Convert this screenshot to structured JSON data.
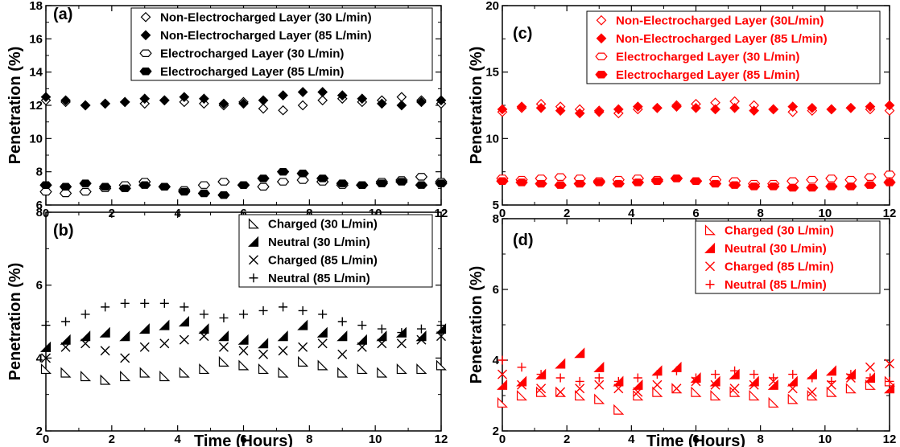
{
  "chart_data": [
    {
      "panel": "(a)",
      "type": "scatter",
      "xlabel": "",
      "ylabel": "Penetration (%)",
      "xlim": [
        0,
        12
      ],
      "ylim": [
        6,
        18
      ],
      "yticks": [
        6,
        8,
        10,
        12,
        14,
        16,
        18
      ],
      "xticks": [
        0,
        2,
        4,
        6,
        8,
        10,
        12
      ],
      "legend_position": "top-right",
      "color": "#000000",
      "series": [
        {
          "name": "Non-Electrocharged Layer (30 L/min)",
          "marker": "diamond-open",
          "x": [
            0,
            0.6,
            1.2,
            1.8,
            2.4,
            3.0,
            3.6,
            4.2,
            4.8,
            5.4,
            6.0,
            6.6,
            7.2,
            7.8,
            8.4,
            9.0,
            9.6,
            10.2,
            10.8,
            11.4,
            12.0
          ],
          "y": [
            12.3,
            12.2,
            12.0,
            12.1,
            12.2,
            12.1,
            12.3,
            12.2,
            12.1,
            12.0,
            12.2,
            11.8,
            11.7,
            12.0,
            12.3,
            12.4,
            12.2,
            12.3,
            12.5,
            12.3,
            12.1
          ]
        },
        {
          "name": "Non-Electrocharged Layer (85 L/min)",
          "marker": "diamond-filled",
          "x": [
            0,
            0.6,
            1.2,
            1.8,
            2.4,
            3.0,
            3.6,
            4.2,
            4.8,
            5.4,
            6.0,
            6.6,
            7.2,
            7.8,
            8.4,
            9.0,
            9.6,
            10.2,
            10.8,
            11.4,
            12.0
          ],
          "y": [
            12.5,
            12.3,
            12.0,
            12.1,
            12.2,
            12.4,
            12.3,
            12.5,
            12.4,
            12.1,
            12.1,
            12.3,
            12.6,
            12.8,
            12.8,
            12.6,
            12.4,
            12.1,
            12.0,
            12.2,
            12.3
          ]
        },
        {
          "name": "Electrocharged Layer (30 L/min)",
          "marker": "hexagon-open",
          "x": [
            0,
            0.6,
            1.2,
            1.8,
            2.4,
            3.0,
            3.6,
            4.2,
            4.8,
            5.4,
            6.0,
            6.6,
            7.2,
            7.8,
            8.4,
            9.0,
            9.6,
            10.2,
            10.8,
            11.4,
            12.0
          ],
          "y": [
            6.8,
            6.7,
            6.8,
            7.0,
            7.2,
            7.4,
            7.1,
            6.9,
            7.2,
            7.4,
            7.2,
            7.1,
            7.4,
            7.5,
            7.4,
            7.2,
            7.2,
            7.4,
            7.5,
            7.7,
            7.4
          ]
        },
        {
          "name": "Electrocharged Layer (85 L/min)",
          "marker": "hexagon-filled",
          "x": [
            0,
            0.6,
            1.2,
            1.8,
            2.4,
            3.0,
            3.6,
            4.2,
            4.8,
            5.4,
            6.0,
            6.6,
            7.2,
            7.8,
            8.4,
            9.0,
            9.6,
            10.2,
            10.8,
            11.4,
            12.0
          ],
          "y": [
            7.2,
            7.1,
            7.3,
            7.1,
            7.0,
            7.2,
            7.1,
            6.8,
            6.7,
            6.6,
            7.2,
            7.6,
            8.0,
            7.9,
            7.6,
            7.3,
            7.2,
            7.3,
            7.4,
            7.2,
            7.3
          ]
        }
      ]
    },
    {
      "panel": "(b)",
      "type": "scatter",
      "xlabel": "Time (Hours)",
      "ylabel": "Penetration (%)",
      "xlim": [
        0,
        12
      ],
      "ylim": [
        2,
        8
      ],
      "yticks": [
        2,
        4,
        6,
        8
      ],
      "xticks": [
        0,
        2,
        4,
        6,
        8,
        10,
        12
      ],
      "legend_position": "top-right",
      "color": "#000000",
      "series": [
        {
          "name": "Charged (30 L/min)",
          "marker": "triangle-open",
          "x": [
            0,
            0.6,
            1.2,
            1.8,
            2.4,
            3.0,
            3.6,
            4.2,
            4.8,
            5.4,
            6.0,
            6.6,
            7.2,
            7.8,
            8.4,
            9.0,
            9.6,
            10.2,
            10.8,
            11.4,
            12.0
          ],
          "y": [
            3.7,
            3.6,
            3.5,
            3.4,
            3.5,
            3.6,
            3.5,
            3.6,
            3.7,
            3.9,
            3.8,
            3.7,
            3.6,
            3.9,
            3.8,
            3.6,
            3.7,
            3.6,
            3.7,
            3.7,
            3.8
          ]
        },
        {
          "name": "Neutral (30 L/min)",
          "marker": "triangle-filled",
          "x": [
            0,
            0.6,
            1.2,
            1.8,
            2.4,
            3.0,
            3.6,
            4.2,
            4.8,
            5.4,
            6.0,
            6.6,
            7.2,
            7.8,
            8.4,
            9.0,
            9.6,
            10.2,
            10.8,
            11.4,
            12.0
          ],
          "y": [
            4.3,
            4.5,
            4.6,
            4.7,
            4.6,
            4.8,
            4.9,
            5.0,
            4.8,
            4.6,
            4.5,
            4.4,
            4.6,
            4.9,
            4.7,
            4.6,
            4.5,
            4.6,
            4.7,
            4.6,
            4.8
          ]
        },
        {
          "name": "Charged (85 L/min)",
          "marker": "x",
          "x": [
            0,
            0.6,
            1.2,
            1.8,
            2.4,
            3.0,
            3.6,
            4.2,
            4.8,
            5.4,
            6.0,
            6.6,
            7.2,
            7.8,
            8.4,
            9.0,
            9.6,
            10.2,
            10.8,
            11.4,
            12.0
          ],
          "y": [
            4.0,
            4.3,
            4.4,
            4.2,
            4.0,
            4.3,
            4.4,
            4.5,
            4.6,
            4.3,
            4.2,
            4.1,
            4.2,
            4.3,
            4.4,
            4.1,
            4.3,
            4.4,
            4.4,
            4.5,
            4.6
          ]
        },
        {
          "name": "Neutral (85 L/min)",
          "marker": "plus",
          "x": [
            0,
            0.6,
            1.2,
            1.8,
            2.4,
            3.0,
            3.6,
            4.2,
            4.8,
            5.4,
            6.0,
            6.6,
            7.2,
            7.8,
            8.4,
            9.0,
            9.6,
            10.2,
            10.8,
            11.4,
            12.0
          ],
          "y": [
            4.9,
            5.0,
            5.2,
            5.4,
            5.5,
            5.5,
            5.5,
            5.4,
            5.2,
            5.1,
            5.2,
            5.3,
            5.4,
            5.3,
            5.2,
            5.0,
            4.9,
            4.8,
            4.7,
            4.8,
            4.9
          ]
        }
      ]
    },
    {
      "panel": "(c)",
      "type": "scatter",
      "xlabel": "",
      "ylabel": "Penetration (%)",
      "xlim": [
        0,
        12
      ],
      "ylim": [
        5,
        20
      ],
      "yticks": [
        5,
        10,
        15,
        20
      ],
      "xticks": [
        0,
        2,
        4,
        6,
        8,
        10,
        12
      ],
      "legend_position": "top-right",
      "color": "#ff0000",
      "series": [
        {
          "name": "Non-Electrocharged Layer (30L/min)",
          "marker": "diamond-open",
          "x": [
            0,
            0.6,
            1.2,
            1.8,
            2.4,
            3.0,
            3.6,
            4.2,
            4.8,
            5.4,
            6.0,
            6.6,
            7.2,
            7.8,
            8.4,
            9.0,
            9.6,
            10.2,
            10.8,
            11.4,
            12.0
          ],
          "y": [
            12.0,
            12.3,
            12.6,
            12.4,
            12.2,
            12.1,
            11.9,
            12.2,
            12.3,
            12.5,
            12.6,
            12.7,
            12.8,
            12.5,
            12.2,
            12.0,
            12.1,
            12.2,
            12.3,
            12.2,
            12.1
          ]
        },
        {
          "name": "Non-Electrocharged Layer (85 L/min)",
          "marker": "diamond-filled",
          "x": [
            0,
            0.6,
            1.2,
            1.8,
            2.4,
            3.0,
            3.6,
            4.2,
            4.8,
            5.4,
            6.0,
            6.6,
            7.2,
            7.8,
            8.4,
            9.0,
            9.6,
            10.2,
            10.8,
            11.4,
            12.0
          ],
          "y": [
            12.2,
            12.4,
            12.3,
            12.1,
            11.9,
            12.0,
            12.2,
            12.4,
            12.3,
            12.4,
            12.3,
            12.2,
            12.3,
            12.1,
            12.2,
            12.4,
            12.3,
            12.2,
            12.3,
            12.4,
            12.5
          ]
        },
        {
          "name": "Electrocharged Layer (30 L/min)",
          "marker": "hexagon-open",
          "x": [
            0,
            0.6,
            1.2,
            1.8,
            2.4,
            3.0,
            3.6,
            4.2,
            4.8,
            5.4,
            6.0,
            6.6,
            7.2,
            7.8,
            8.4,
            9.0,
            9.6,
            10.2,
            10.8,
            11.4,
            12.0
          ],
          "y": [
            7.0,
            6.9,
            7.0,
            7.1,
            7.0,
            6.8,
            6.9,
            7.0,
            6.9,
            7.0,
            6.8,
            6.9,
            6.8,
            6.6,
            6.6,
            6.8,
            6.9,
            7.0,
            6.9,
            7.1,
            7.3
          ]
        },
        {
          "name": "Electrocharged Layer (85 L/min)",
          "marker": "hexagon-filled",
          "x": [
            0,
            0.6,
            1.2,
            1.8,
            2.4,
            3.0,
            3.6,
            4.2,
            4.8,
            5.4,
            6.0,
            6.6,
            7.2,
            7.8,
            8.4,
            9.0,
            9.6,
            10.2,
            10.8,
            11.4,
            12.0
          ],
          "y": [
            6.8,
            6.7,
            6.6,
            6.5,
            6.6,
            6.7,
            6.6,
            6.7,
            6.8,
            7.0,
            6.8,
            6.6,
            6.5,
            6.4,
            6.4,
            6.3,
            6.3,
            6.4,
            6.4,
            6.5,
            6.7
          ]
        }
      ]
    },
    {
      "panel": "(d)",
      "type": "scatter",
      "xlabel": "Time (Hours)",
      "ylabel": "Penetration (%)",
      "xlim": [
        0,
        12
      ],
      "ylim": [
        2,
        8
      ],
      "yticks": [
        2,
        4,
        6,
        8
      ],
      "xticks": [
        0,
        2,
        4,
        6,
        8,
        10,
        12
      ],
      "legend_position": "top-right",
      "color": "#ff0000",
      "series": [
        {
          "name": "Charged (30 L/min)",
          "marker": "triangle-open",
          "x": [
            0,
            0.6,
            1.2,
            1.8,
            2.4,
            3.0,
            3.6,
            4.2,
            4.8,
            5.4,
            6.0,
            6.6,
            7.2,
            7.8,
            8.4,
            9.0,
            9.6,
            10.2,
            10.8,
            11.4,
            12.0
          ],
          "y": [
            2.8,
            3.0,
            3.1,
            3.1,
            3.0,
            2.9,
            2.6,
            3.0,
            3.1,
            3.2,
            3.1,
            3.0,
            3.1,
            3.0,
            2.8,
            2.9,
            3.0,
            3.1,
            3.2,
            3.3,
            3.4
          ]
        },
        {
          "name": "Neutral (30 L/min)",
          "marker": "triangle-filled",
          "x": [
            0,
            0.6,
            1.2,
            1.8,
            2.4,
            3.0,
            3.6,
            4.2,
            4.8,
            5.4,
            6.0,
            6.6,
            7.2,
            7.8,
            8.4,
            9.0,
            9.6,
            10.2,
            10.8,
            11.4,
            12.0
          ],
          "y": [
            3.3,
            3.4,
            3.6,
            3.9,
            4.2,
            3.8,
            3.4,
            3.3,
            3.7,
            3.8,
            3.5,
            3.4,
            3.6,
            3.4,
            3.3,
            3.4,
            3.6,
            3.7,
            3.6,
            3.5,
            3.2
          ]
        },
        {
          "name": "Charged (85 L/min)",
          "marker": "x",
          "x": [
            0,
            0.6,
            1.2,
            1.8,
            2.4,
            3.0,
            3.6,
            4.2,
            4.8,
            5.4,
            6.0,
            6.6,
            7.2,
            7.8,
            8.4,
            9.0,
            9.6,
            10.2,
            10.8,
            11.4,
            12.0
          ],
          "y": [
            3.6,
            3.3,
            3.2,
            3.1,
            3.2,
            3.3,
            3.2,
            3.1,
            3.3,
            3.2,
            3.4,
            3.3,
            3.2,
            3.3,
            3.4,
            3.2,
            3.1,
            3.3,
            3.5,
            3.8,
            3.9
          ]
        },
        {
          "name": "Neutral (85 L/min)",
          "marker": "plus",
          "x": [
            0,
            0.6,
            1.2,
            1.8,
            2.4,
            3.0,
            3.6,
            4.2,
            4.8,
            5.4,
            6.0,
            6.6,
            7.2,
            7.8,
            8.4,
            9.0,
            9.6,
            10.2,
            10.8,
            11.4,
            12.0
          ],
          "y": [
            4.0,
            3.8,
            3.6,
            3.5,
            3.4,
            3.5,
            3.4,
            3.5,
            3.6,
            3.7,
            3.5,
            3.6,
            3.7,
            3.6,
            3.5,
            3.6,
            3.5,
            3.4,
            3.6,
            3.5,
            3.4
          ]
        }
      ]
    }
  ]
}
